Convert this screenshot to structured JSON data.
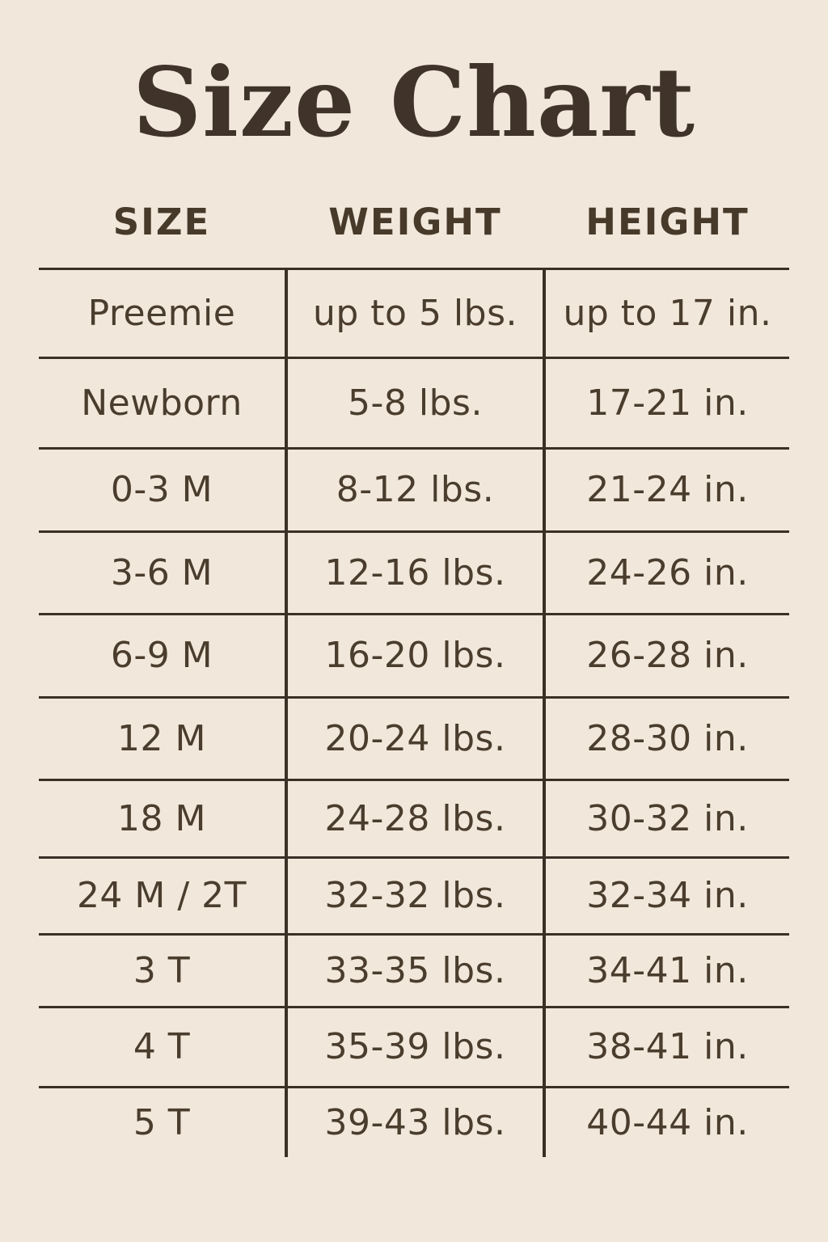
{
  "page": {
    "background_color": "#f1e8db",
    "text_color": "#4a3d2e",
    "line_color": "#3a3026",
    "title": "Size Chart"
  },
  "table": {
    "headers": {
      "size": "SIZE",
      "weight": "WEIGHT",
      "height": "HEIGHT"
    },
    "rows": [
      {
        "size": "Preemie",
        "weight": "up to 5 lbs.",
        "height": "up to 17 in."
      },
      {
        "size": "Newborn",
        "weight": "5-8 lbs.",
        "height": "17-21 in."
      },
      {
        "size": "0-3 M",
        "weight": "8-12 lbs.",
        "height": "21-24 in."
      },
      {
        "size": "3-6 M",
        "weight": "12-16 lbs.",
        "height": "24-26 in."
      },
      {
        "size": "6-9 M",
        "weight": "16-20 lbs.",
        "height": "26-28 in."
      },
      {
        "size": "12 M",
        "weight": "20-24 lbs.",
        "height": "28-30 in."
      },
      {
        "size": "18 M",
        "weight": "24-28 lbs.",
        "height": "30-32 in."
      },
      {
        "size": "24 M / 2T",
        "weight": "32-32 lbs.",
        "height": "32-34 in."
      },
      {
        "size": "3 T",
        "weight": "33-35 lbs.",
        "height": "34-41 in."
      },
      {
        "size": "4 T",
        "weight": "35-39 lbs.",
        "height": "38-41 in."
      },
      {
        "size": "5 T",
        "weight": "39-43 lbs.",
        "height": "40-44 in."
      }
    ]
  },
  "chart_data": {
    "type": "table",
    "title": "Size Chart",
    "columns": [
      "SIZE",
      "WEIGHT",
      "HEIGHT"
    ],
    "rows": [
      [
        "Preemie",
        "up to 5 lbs.",
        "up to 17 in."
      ],
      [
        "Newborn",
        "5-8 lbs.",
        "17-21 in."
      ],
      [
        "0-3 M",
        "8-12 lbs.",
        "21-24 in."
      ],
      [
        "3-6 M",
        "12-16 lbs.",
        "24-26 in."
      ],
      [
        "6-9 M",
        "16-20 lbs.",
        "26-28 in."
      ],
      [
        "12 M",
        "20-24 lbs.",
        "28-30 in."
      ],
      [
        "18 M",
        "24-28 lbs.",
        "30-32 in."
      ],
      [
        "24 M / 2T",
        "32-32 lbs.",
        "32-34 in."
      ],
      [
        "3 T",
        "33-35 lbs.",
        "34-41 in."
      ],
      [
        "4 T",
        "35-39 lbs.",
        "38-41 in."
      ],
      [
        "5 T",
        "39-43 lbs.",
        "40-44 in."
      ]
    ]
  }
}
